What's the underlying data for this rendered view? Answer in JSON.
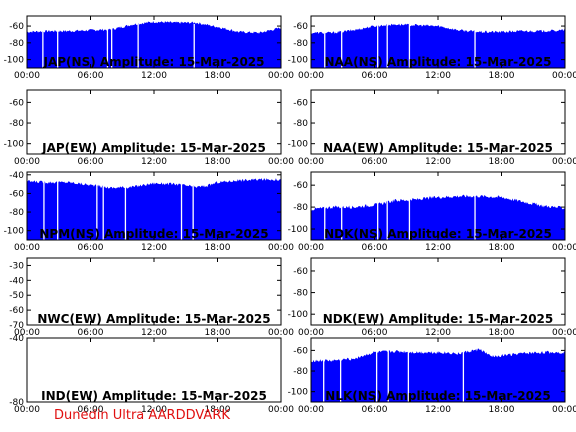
{
  "credit": "Dunedin Ultra AARDDVARK",
  "colors": {
    "fill": "#0000ff",
    "axis": "#000000",
    "credit": "#e01010"
  },
  "chart_data": [
    {
      "id": "jap-ns",
      "type": "area",
      "title": "JAP(NS) Amplitude: 15-Mar-2025",
      "x_ticks": [
        "00:00",
        "06:00",
        "12:00",
        "18:00",
        "00:00"
      ],
      "y_ticks": [
        -60,
        -80,
        -100
      ],
      "ylim": [
        -110,
        -48
      ],
      "x": [
        0,
        2,
        4,
        6,
        8,
        10,
        12,
        14,
        16,
        18,
        20,
        22,
        24
      ],
      "values": [
        -67,
        -66,
        -66,
        -65,
        -64,
        -58,
        -55,
        -56,
        -56,
        -61,
        -67,
        -68,
        -62
      ],
      "dropouts": [
        1.5,
        2.9,
        7.6,
        8.0,
        10.5,
        15.8
      ]
    },
    {
      "id": "naa-ns",
      "type": "area",
      "title": "NAA(NS) Amplitude: 15-Mar-2025",
      "x_ticks": [
        "00:00",
        "06:00",
        "12:00",
        "18:00",
        "00:00"
      ],
      "y_ticks": [
        -60,
        -80,
        -100
      ],
      "ylim": [
        -110,
        -48
      ],
      "x": [
        0,
        2,
        4,
        6,
        8,
        10,
        12,
        14,
        16,
        18,
        20,
        22,
        24
      ],
      "values": [
        -68,
        -68,
        -65,
        -60,
        -58,
        -59,
        -60,
        -65,
        -67,
        -67,
        -66,
        -66,
        -65
      ],
      "dropouts": [
        1.3,
        2.9,
        6.3,
        7.2,
        9.3,
        15.5
      ]
    },
    {
      "id": "jap-ew",
      "type": "area",
      "title": "JAP(EW) Amplitude: 15-Mar-2025",
      "x_ticks": [
        "00:00",
        "06:00",
        "12:00",
        "18:00",
        "00:00"
      ],
      "y_ticks": [
        -60,
        -80,
        -100
      ],
      "ylim": [
        -110,
        -48
      ],
      "x": [],
      "values": [],
      "dropouts": []
    },
    {
      "id": "naa-ew",
      "type": "area",
      "title": "NAA(EW) Amplitude: 15-Mar-2025",
      "x_ticks": [
        "00:00",
        "06:00",
        "12:00",
        "18:00",
        "00:00"
      ],
      "y_ticks": [
        -60,
        -80,
        -100
      ],
      "ylim": [
        -110,
        -48
      ],
      "x": [],
      "values": [],
      "dropouts": []
    },
    {
      "id": "npm-ns",
      "type": "area",
      "title": "NPM(NS) Amplitude: 15-Mar-2025",
      "x_ticks": [
        "00:00",
        "06:00",
        "12:00",
        "18:00",
        "00:00"
      ],
      "y_ticks": [
        -40,
        -60,
        -80,
        -100
      ],
      "ylim": [
        -110,
        -37
      ],
      "x": [
        0,
        2,
        4,
        6,
        8,
        10,
        12,
        14,
        16,
        17,
        18,
        20,
        22,
        24
      ],
      "values": [
        -47,
        -48,
        -48,
        -51,
        -54,
        -53,
        -49,
        -50,
        -53,
        -52,
        -48,
        -46,
        -45,
        -45
      ],
      "dropouts": [
        1.6,
        2.9,
        6.6,
        7.2,
        9.3,
        14.6,
        15.7
      ]
    },
    {
      "id": "ndk-ns",
      "type": "area",
      "title": "NDK(NS) Amplitude: 15-Mar-2025",
      "x_ticks": [
        "00:00",
        "06:00",
        "12:00",
        "18:00",
        "00:00"
      ],
      "y_ticks": [
        -60,
        -80,
        -100
      ],
      "ylim": [
        -110,
        -48
      ],
      "x": [
        0,
        2,
        4,
        6,
        8,
        10,
        12,
        14,
        16,
        18,
        20,
        22,
        24
      ],
      "values": [
        -82,
        -80,
        -80,
        -78,
        -74,
        -73,
        -71,
        -70,
        -70,
        -71,
        -75,
        -79,
        -81
      ],
      "dropouts": [
        1.3,
        2.9,
        6.3,
        7.2,
        9.3,
        15.5
      ]
    },
    {
      "id": "nwc-ew",
      "type": "area",
      "title": "NWC(EW) Amplitude: 15-Mar-2025",
      "x_ticks": [
        "00:00",
        "06:00",
        "12:00",
        "18:00",
        "00:00"
      ],
      "y_ticks": [
        -30,
        -40,
        -50,
        -60,
        -70
      ],
      "ylim": [
        -70,
        -25
      ],
      "x": [],
      "values": [],
      "dropouts": []
    },
    {
      "id": "ndk-ew",
      "type": "area",
      "title": "NDK(EW) Amplitude: 15-Mar-2025",
      "x_ticks": [
        "00:00",
        "06:00",
        "12:00",
        "18:00",
        "00:00"
      ],
      "y_ticks": [
        -60,
        -80,
        -100
      ],
      "ylim": [
        -110,
        -48
      ],
      "x": [],
      "values": [],
      "dropouts": []
    },
    {
      "id": "ind-ew",
      "type": "area",
      "title": "IND(EW) Amplitude: 15-Mar-2025",
      "x_ticks": [
        "00:00",
        "06:00",
        "12:00",
        "18:00",
        "00:00"
      ],
      "y_ticks": [
        -40,
        -80
      ],
      "ylim": [
        -80,
        -40
      ],
      "x": [],
      "values": [],
      "dropouts": []
    },
    {
      "id": "nlk-ns",
      "type": "area",
      "title": "NLK(NS) Amplitude: 15-Mar-2025",
      "x_ticks": [
        "00:00",
        "06:00",
        "12:00",
        "18:00",
        "00:00"
      ],
      "y_ticks": [
        -60,
        -80,
        -100
      ],
      "ylim": [
        -110,
        -48
      ],
      "x": [
        0,
        2,
        4,
        6,
        8,
        10,
        12,
        14,
        16,
        17,
        18,
        20,
        22,
        24
      ],
      "values": [
        -70,
        -70,
        -68,
        -62,
        -61,
        -62,
        -62,
        -63,
        -59,
        -66,
        -65,
        -63,
        -62,
        -62
      ],
      "dropouts": [
        1.2,
        2.8,
        6.2,
        7.3,
        9.2,
        14.4
      ]
    }
  ]
}
